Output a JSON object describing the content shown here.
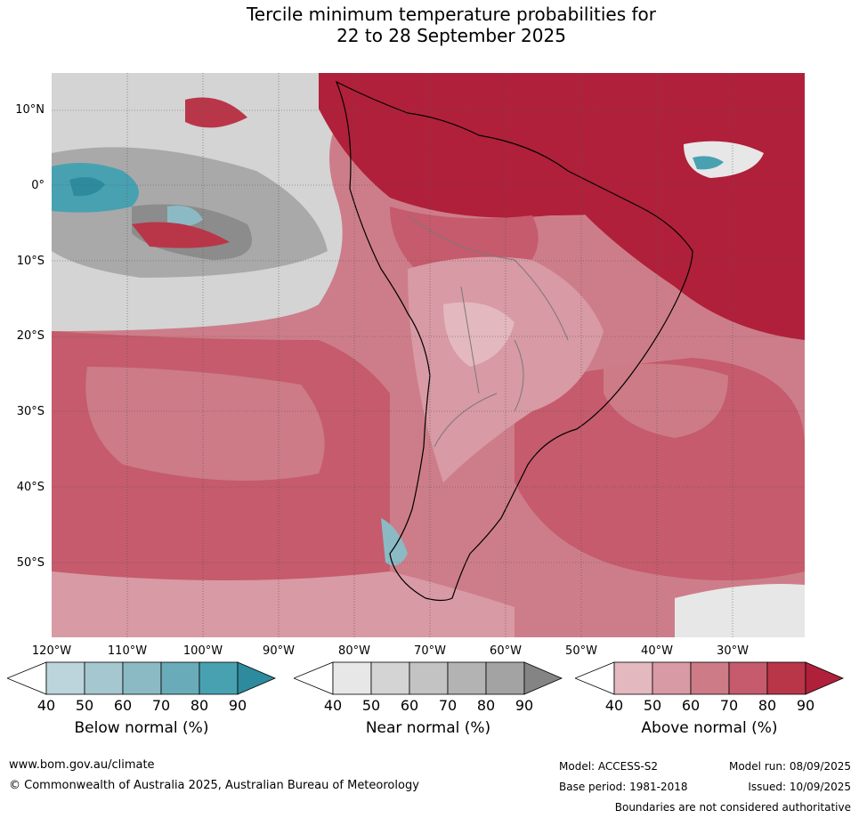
{
  "title_line1": "Tercile minimum temperature probabilities for",
  "title_line2": "22 to 28 September 2025",
  "latitude_labels": [
    "10°N",
    "0°",
    "10°S",
    "20°S",
    "30°S",
    "40°S",
    "50°S"
  ],
  "longitude_labels": [
    "120°W",
    "110°W",
    "100°W",
    "90°W",
    "80°W",
    "70°W",
    "60°W",
    "50°W",
    "40°W",
    "30°W"
  ],
  "colorbars": [
    {
      "title": "Below normal (%)",
      "ticks": [
        "40",
        "50",
        "60",
        "70",
        "80",
        "90"
      ],
      "colors": [
        "#ffffff",
        "#bcd5dc",
        "#a5c7cf",
        "#8cbac4",
        "#6aabb9",
        "#48a1b1",
        "#2d8b9d"
      ]
    },
    {
      "title": "Near normal (%)",
      "ticks": [
        "40",
        "50",
        "60",
        "70",
        "80",
        "90"
      ],
      "colors": [
        "#ffffff",
        "#e7e7e7",
        "#d4d4d4",
        "#c3c3c3",
        "#b3b3b3",
        "#a3a3a3",
        "#848484"
      ]
    },
    {
      "title": "Above normal (%)",
      "ticks": [
        "40",
        "50",
        "60",
        "70",
        "80",
        "90"
      ],
      "colors": [
        "#ffffff",
        "#e3b8bf",
        "#d89aa4",
        "#cc7b87",
        "#c55b6c",
        "#b93649",
        "#b0203a"
      ]
    }
  ],
  "footer": {
    "url": "www.bom.gov.au/climate",
    "copyright": "© Commonwealth of Australia 2025, Australian Bureau of Meteorology",
    "model": "Model: ACCESS-S2",
    "model_run": "Model run: 08/09/2025",
    "base_period": "Base period: 1981-2018",
    "issued": "Issued: 10/09/2025",
    "boundaries_note": "Boundaries are not considered authoritative"
  }
}
